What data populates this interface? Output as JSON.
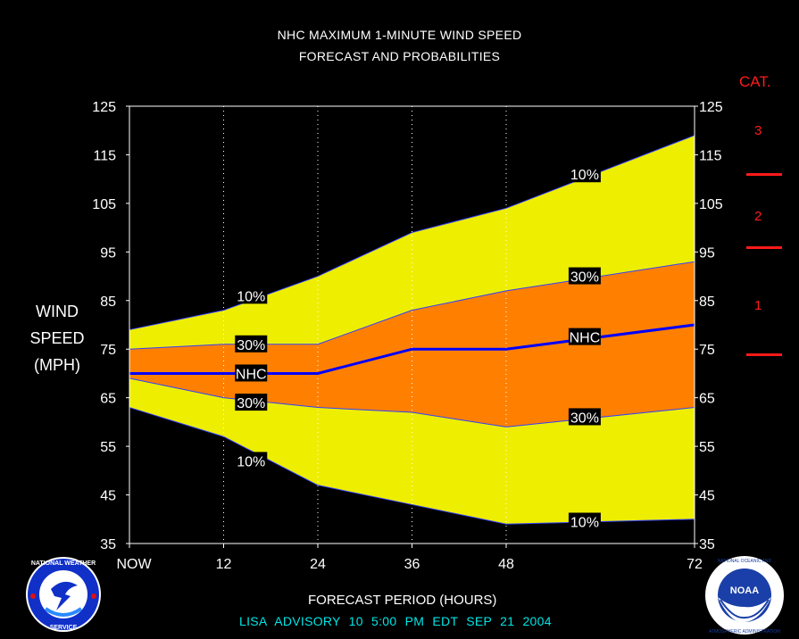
{
  "title_line1": "NHC MAXIMUM 1-MINUTE WIND SPEED",
  "title_line2": "FORECAST AND PROBABILITIES",
  "ylabel_lines": [
    "WIND",
    "SPEED",
    "(MPH)"
  ],
  "xlabel": "FORECAST PERIOD (HOURS)",
  "footer": "LISA   ADVISORY  10  5:00  PM  EDT  SEP  21  2004",
  "categories": {
    "header": "CAT.",
    "labels": [
      {
        "label": "3",
        "mid": 120
      },
      {
        "label": "2",
        "mid": 102.5
      },
      {
        "label": "1",
        "mid": 84
      }
    ],
    "boundaries": [
      111,
      96,
      74
    ],
    "color": "#ff1a1a"
  },
  "colors": {
    "yellow": "#eeee00",
    "orange": "#ff8000",
    "nhc": "#0000ff",
    "accent_footer": "#00e5e5"
  },
  "logos": {
    "left": {
      "name": "national-weather-service-logo",
      "text": "NATIONAL WEATHER SERVICE"
    },
    "right": {
      "name": "noaa-logo",
      "text": "NOAA",
      "ring_text": "NATIONAL OCEANIC AND ATMOSPHERIC ADMINISTRATION"
    }
  },
  "chart_data": {
    "type": "area",
    "x_ticks": [
      {
        "value": 0,
        "label": "NOW"
      },
      {
        "value": 12,
        "label": "12"
      },
      {
        "value": 24,
        "label": "24"
      },
      {
        "value": 36,
        "label": "36"
      },
      {
        "value": 48,
        "label": "48"
      },
      {
        "value": 72,
        "label": "72"
      }
    ],
    "xlim": [
      0,
      72
    ],
    "ylim": [
      35,
      125
    ],
    "y_ticks": [
      35,
      45,
      55,
      65,
      75,
      85,
      95,
      105,
      115,
      125
    ],
    "gridlines": "vertical dotted at 12, 24, 36, 48",
    "x": [
      0,
      12,
      24,
      36,
      48,
      72
    ],
    "series": [
      {
        "name": "10%",
        "values": [
          79,
          83,
          90,
          99,
          104,
          119
        ]
      },
      {
        "name": "30%",
        "values": [
          75,
          76,
          76,
          83,
          87,
          93
        ]
      },
      {
        "name": "NHC",
        "values": [
          70,
          70,
          70,
          75,
          75,
          80
        ]
      },
      {
        "name": "30%",
        "values": [
          69,
          65,
          63,
          62,
          59,
          63
        ]
      },
      {
        "name": "10%",
        "values": [
          63,
          57,
          47,
          43,
          39,
          40
        ]
      }
    ],
    "labels": [
      {
        "text": "10%",
        "x": 15.5,
        "y": 86
      },
      {
        "text": "30%",
        "x": 15.5,
        "y": 76
      },
      {
        "text": "NHC",
        "x": 15.5,
        "y": 70
      },
      {
        "text": "30%",
        "x": 15.5,
        "y": 64
      },
      {
        "text": "10%",
        "x": 15.5,
        "y": 52
      },
      {
        "text": "10%",
        "x": 58,
        "y": 111
      },
      {
        "text": "30%",
        "x": 58,
        "y": 90
      },
      {
        "text": "NHC",
        "x": 58,
        "y": 77.5
      },
      {
        "text": "30%",
        "x": 58,
        "y": 61
      },
      {
        "text": "10%",
        "x": 58,
        "y": 39.5
      }
    ]
  }
}
